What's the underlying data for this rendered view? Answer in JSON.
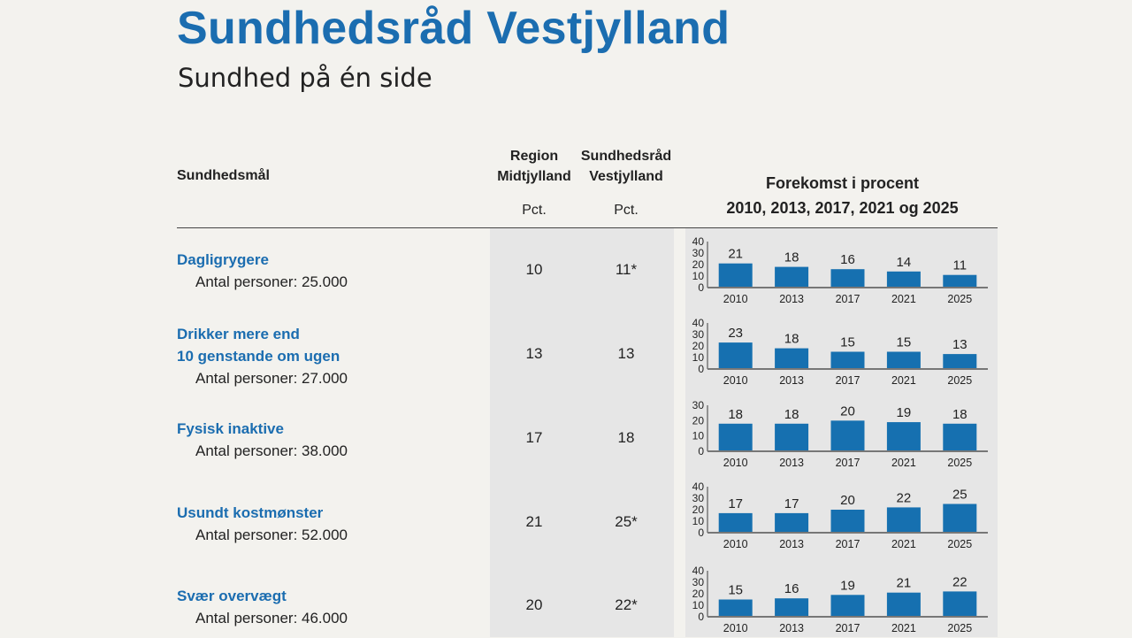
{
  "title": "Sundhedsråd Vestjylland",
  "subtitle": "Sundhed på én side",
  "header": {
    "measure": "Sundhedsmål",
    "region_line1": "Region",
    "region_line2": "Midtjylland",
    "council_line1": "Sundhedsråd",
    "council_line2": "Vestjylland",
    "pct_label": "Pct.",
    "chart_line1": "Forekomst i procent",
    "chart_line2": "2010, 2013, 2017, 2021 og 2025"
  },
  "rows": [
    {
      "title_lines": [
        "Dagligrygere"
      ],
      "persons": "Antal personer: 25.000",
      "region": "10",
      "council": "11*"
    },
    {
      "title_lines": [
        "Drikker mere end",
        "10 genstande om ugen"
      ],
      "persons": "Antal personer: 27.000",
      "region": "13",
      "council": "13"
    },
    {
      "title_lines": [
        "Fysisk inaktive"
      ],
      "persons": "Antal personer: 38.000",
      "region": "17",
      "council": "18"
    },
    {
      "title_lines": [
        "Usundt kostmønster"
      ],
      "persons": "Antal personer: 52.000",
      "region": "21",
      "council": "25*"
    },
    {
      "title_lines": [
        "Svær overvægt"
      ],
      "persons": "Antal personer: 46.000",
      "region": "20",
      "council": "22*"
    }
  ],
  "colors": {
    "bar": "#1670b0",
    "title": "#1b6db0",
    "axis": "#777777"
  },
  "chart_data": [
    {
      "type": "bar",
      "categories": [
        "2010",
        "2013",
        "2017",
        "2021",
        "2025"
      ],
      "values": [
        21,
        18,
        16,
        14,
        11
      ],
      "ylim": [
        0,
        40
      ],
      "yticks": [
        0,
        10,
        20,
        30,
        40
      ]
    },
    {
      "type": "bar",
      "categories": [
        "2010",
        "2013",
        "2017",
        "2021",
        "2025"
      ],
      "values": [
        23,
        18,
        15,
        15,
        13
      ],
      "ylim": [
        0,
        40
      ],
      "yticks": [
        0,
        10,
        20,
        30,
        40
      ]
    },
    {
      "type": "bar",
      "categories": [
        "2010",
        "2013",
        "2017",
        "2021",
        "2025"
      ],
      "values": [
        18,
        18,
        20,
        19,
        18
      ],
      "ylim": [
        0,
        30
      ],
      "yticks": [
        0,
        10,
        20,
        30
      ]
    },
    {
      "type": "bar",
      "categories": [
        "2010",
        "2013",
        "2017",
        "2021",
        "2025"
      ],
      "values": [
        17,
        17,
        20,
        22,
        25
      ],
      "ylim": [
        0,
        40
      ],
      "yticks": [
        0,
        10,
        20,
        30,
        40
      ]
    },
    {
      "type": "bar",
      "categories": [
        "2010",
        "2013",
        "2017",
        "2021",
        "2025"
      ],
      "values": [
        15,
        16,
        19,
        21,
        22
      ],
      "ylim": [
        0,
        40
      ],
      "yticks": [
        0,
        10,
        20,
        30,
        40
      ]
    }
  ]
}
